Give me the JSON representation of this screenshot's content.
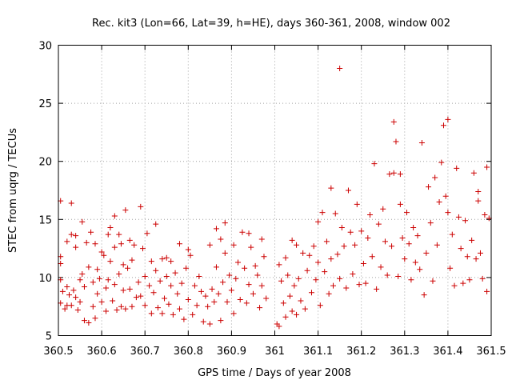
{
  "chart_data": {
    "type": "scatter",
    "title": "Rec. kit3 (Lon=66, Lat=39, h=HE), days 360-361, 2008, window 002",
    "xlabel": "GPS time / Days of year 2008",
    "ylabel": "STEC from uqrg / TECUs",
    "xlim": [
      360.5,
      361.5
    ],
    "ylim": [
      5,
      30
    ],
    "x_ticks": [
      360.5,
      360.6,
      360.7,
      360.8,
      360.9,
      361,
      361.1,
      361.2,
      361.3,
      361.4,
      361.5
    ],
    "x_tick_labels": [
      "360.5",
      "360.6",
      "360.7",
      "360.8",
      "360.9",
      "361",
      "361.1",
      "361.2",
      "361.3",
      "361.4",
      "361.5"
    ],
    "y_ticks": [
      5,
      10,
      15,
      20,
      25,
      30
    ],
    "y_tick_labels": [
      "5",
      "10",
      "15",
      "20",
      "25",
      "30"
    ],
    "grid": true,
    "marker": "+",
    "marker_color": "#cc0000",
    "series": [
      {
        "points": [
          [
            360.505,
            16.6
          ],
          [
            360.505,
            11.8
          ],
          [
            360.505,
            11.2
          ],
          [
            360.505,
            9.8
          ],
          [
            360.505,
            7.8
          ],
          [
            360.51,
            8.8
          ],
          [
            360.515,
            7.3
          ],
          [
            360.52,
            13.1
          ],
          [
            360.52,
            9.2
          ],
          [
            360.52,
            7.6
          ],
          [
            360.525,
            8.5
          ],
          [
            360.53,
            16.4
          ],
          [
            360.53,
            13.7
          ],
          [
            360.53,
            7.6
          ],
          [
            360.535,
            8.9
          ],
          [
            360.54,
            13.6
          ],
          [
            360.54,
            12.6
          ],
          [
            360.54,
            8.3
          ],
          [
            360.545,
            7.2
          ],
          [
            360.55,
            9.8
          ],
          [
            360.55,
            7.9
          ],
          [
            360.555,
            14.8
          ],
          [
            360.555,
            10.3
          ],
          [
            360.56,
            9.2
          ],
          [
            360.56,
            6.3
          ],
          [
            360.565,
            13.0
          ],
          [
            360.57,
            10.9
          ],
          [
            360.57,
            6.1
          ],
          [
            360.575,
            13.9
          ],
          [
            360.58,
            9.6
          ],
          [
            360.58,
            7.5
          ],
          [
            360.585,
            12.9
          ],
          [
            360.585,
            6.5
          ],
          [
            360.59,
            10.7
          ],
          [
            360.59,
            8.6
          ],
          [
            360.595,
            9.9
          ],
          [
            360.6,
            12.2
          ],
          [
            360.6,
            7.9
          ],
          [
            360.605,
            11.9
          ],
          [
            360.61,
            9.1
          ],
          [
            360.61,
            7.1
          ],
          [
            360.615,
            13.7
          ],
          [
            360.615,
            9.8
          ],
          [
            360.62,
            14.3
          ],
          [
            360.62,
            11.4
          ],
          [
            360.625,
            8.0
          ],
          [
            360.63,
            15.3
          ],
          [
            360.63,
            12.6
          ],
          [
            360.63,
            9.4
          ],
          [
            360.635,
            7.2
          ],
          [
            360.64,
            13.7
          ],
          [
            360.64,
            10.3
          ],
          [
            360.645,
            12.9
          ],
          [
            360.645,
            7.5
          ],
          [
            360.65,
            11.1
          ],
          [
            360.65,
            8.9
          ],
          [
            360.655,
            15.8
          ],
          [
            360.655,
            7.3
          ],
          [
            360.66,
            10.8
          ],
          [
            360.665,
            13.2
          ],
          [
            360.665,
            9.0
          ],
          [
            360.67,
            11.5
          ],
          [
            360.67,
            7.5
          ],
          [
            360.675,
            12.8
          ],
          [
            360.68,
            8.3
          ],
          [
            360.685,
            9.6
          ],
          [
            360.69,
            16.1
          ],
          [
            360.69,
            8.4
          ],
          [
            360.695,
            12.5
          ],
          [
            360.7,
            10.1
          ],
          [
            360.7,
            7.6
          ],
          [
            360.705,
            13.8
          ],
          [
            360.71,
            9.3
          ],
          [
            360.715,
            11.4
          ],
          [
            360.715,
            6.9
          ],
          [
            360.72,
            8.7
          ],
          [
            360.725,
            14.6
          ],
          [
            360.725,
            10.6
          ],
          [
            360.73,
            7.4
          ],
          [
            360.735,
            9.7
          ],
          [
            360.74,
            11.6
          ],
          [
            360.74,
            6.9
          ],
          [
            360.745,
            8.2
          ],
          [
            360.75,
            11.7
          ],
          [
            360.75,
            10.1
          ],
          [
            360.755,
            7.7
          ],
          [
            360.76,
            11.4
          ],
          [
            360.76,
            9.3
          ],
          [
            360.765,
            6.8
          ],
          [
            360.77,
            10.4
          ],
          [
            360.775,
            8.6
          ],
          [
            360.78,
            12.9
          ],
          [
            360.78,
            7.3
          ],
          [
            360.785,
            9.5
          ],
          [
            360.79,
            6.4
          ],
          [
            360.795,
            10.8
          ],
          [
            360.8,
            12.4
          ],
          [
            360.8,
            8.1
          ],
          [
            360.805,
            11.9
          ],
          [
            360.81,
            6.8
          ],
          [
            360.815,
            9.3
          ],
          [
            360.82,
            7.6
          ],
          [
            360.825,
            10.1
          ],
          [
            360.83,
            8.8
          ],
          [
            360.835,
            6.2
          ],
          [
            360.84,
            8.4
          ],
          [
            360.845,
            7.5
          ],
          [
            360.85,
            12.8
          ],
          [
            360.85,
            6.0
          ],
          [
            360.855,
            9.0
          ],
          [
            360.86,
            7.9
          ],
          [
            360.865,
            14.2
          ],
          [
            360.865,
            10.9
          ],
          [
            360.87,
            8.6
          ],
          [
            360.875,
            13.3
          ],
          [
            360.875,
            6.3
          ],
          [
            360.88,
            9.6
          ],
          [
            360.885,
            14.7
          ],
          [
            360.885,
            12.1
          ],
          [
            360.89,
            7.9
          ],
          [
            360.895,
            10.2
          ],
          [
            360.9,
            8.9
          ],
          [
            360.905,
            12.8
          ],
          [
            360.905,
            6.9
          ],
          [
            360.91,
            9.9
          ],
          [
            360.915,
            11.3
          ],
          [
            360.92,
            8.1
          ],
          [
            360.925,
            13.9
          ],
          [
            360.93,
            10.8
          ],
          [
            360.935,
            7.8
          ],
          [
            360.94,
            13.8
          ],
          [
            360.94,
            9.4
          ],
          [
            360.945,
            12.6
          ],
          [
            360.95,
            8.6
          ],
          [
            360.955,
            11.0
          ],
          [
            360.96,
            10.2
          ],
          [
            360.965,
            7.4
          ],
          [
            360.97,
            13.3
          ],
          [
            360.97,
            9.3
          ],
          [
            360.975,
            11.8
          ],
          [
            360.98,
            8.2
          ],
          [
            361.005,
            6.0
          ],
          [
            361.01,
            11.1
          ],
          [
            361.01,
            5.8
          ],
          [
            361.015,
            9.7
          ],
          [
            361.02,
            7.8
          ],
          [
            361.025,
            11.7
          ],
          [
            361.025,
            6.6
          ],
          [
            361.03,
            10.2
          ],
          [
            361.035,
            8.4
          ],
          [
            361.04,
            13.2
          ],
          [
            361.04,
            7.1
          ],
          [
            361.045,
            9.3
          ],
          [
            361.05,
            12.8
          ],
          [
            361.05,
            6.8
          ],
          [
            361.055,
            9.9
          ],
          [
            361.06,
            8.0
          ],
          [
            361.065,
            12.1
          ],
          [
            361.07,
            7.3
          ],
          [
            361.075,
            10.6
          ],
          [
            361.08,
            11.9
          ],
          [
            361.085,
            8.7
          ],
          [
            361.09,
            12.7
          ],
          [
            361.095,
            9.8
          ],
          [
            361.1,
            14.8
          ],
          [
            361.1,
            11.3
          ],
          [
            361.105,
            7.6
          ],
          [
            361.11,
            15.6
          ],
          [
            361.115,
            10.5
          ],
          [
            361.12,
            13.1
          ],
          [
            361.125,
            8.6
          ],
          [
            361.13,
            17.7
          ],
          [
            361.13,
            11.6
          ],
          [
            361.135,
            9.3
          ],
          [
            361.14,
            15.5
          ],
          [
            361.145,
            12.0
          ],
          [
            361.15,
            28.0
          ],
          [
            361.15,
            9.9
          ],
          [
            361.155,
            14.3
          ],
          [
            361.16,
            12.7
          ],
          [
            361.165,
            9.1
          ],
          [
            361.17,
            17.5
          ],
          [
            361.175,
            13.9
          ],
          [
            361.18,
            10.3
          ],
          [
            361.185,
            12.8
          ],
          [
            361.19,
            16.3
          ],
          [
            361.195,
            9.4
          ],
          [
            361.2,
            14.0
          ],
          [
            361.205,
            11.2
          ],
          [
            361.21,
            9.5
          ],
          [
            361.215,
            13.4
          ],
          [
            361.22,
            15.4
          ],
          [
            361.225,
            11.8
          ],
          [
            361.23,
            19.8
          ],
          [
            361.235,
            9.0
          ],
          [
            361.24,
            14.6
          ],
          [
            361.245,
            10.9
          ],
          [
            361.25,
            15.9
          ],
          [
            361.255,
            13.1
          ],
          [
            361.26,
            10.2
          ],
          [
            361.265,
            18.9
          ],
          [
            361.27,
            12.7
          ],
          [
            361.275,
            23.4
          ],
          [
            361.275,
            19.0
          ],
          [
            361.28,
            21.7
          ],
          [
            361.285,
            10.1
          ],
          [
            361.29,
            18.9
          ],
          [
            361.29,
            16.3
          ],
          [
            361.295,
            13.4
          ],
          [
            361.3,
            11.6
          ],
          [
            361.305,
            15.6
          ],
          [
            361.31,
            12.9
          ],
          [
            361.315,
            9.8
          ],
          [
            361.32,
            14.3
          ],
          [
            361.325,
            11.3
          ],
          [
            361.33,
            13.6
          ],
          [
            361.335,
            10.7
          ],
          [
            361.34,
            21.6
          ],
          [
            361.345,
            8.5
          ],
          [
            361.35,
            12.1
          ],
          [
            361.355,
            17.8
          ],
          [
            361.36,
            14.7
          ],
          [
            361.365,
            9.7
          ],
          [
            361.37,
            18.6
          ],
          [
            361.375,
            12.8
          ],
          [
            361.38,
            16.5
          ],
          [
            361.385,
            19.9
          ],
          [
            361.39,
            23.1
          ],
          [
            361.395,
            17.0
          ],
          [
            361.4,
            23.6
          ],
          [
            361.4,
            15.6
          ],
          [
            361.405,
            10.8
          ],
          [
            361.41,
            13.7
          ],
          [
            361.415,
            9.3
          ],
          [
            361.42,
            19.4
          ],
          [
            361.425,
            15.2
          ],
          [
            361.43,
            12.5
          ],
          [
            361.435,
            9.5
          ],
          [
            361.44,
            14.9
          ],
          [
            361.445,
            11.8
          ],
          [
            361.45,
            9.8
          ],
          [
            361.455,
            13.2
          ],
          [
            361.46,
            19.0
          ],
          [
            361.465,
            11.6
          ],
          [
            361.47,
            17.4
          ],
          [
            361.47,
            16.6
          ],
          [
            361.475,
            12.1
          ],
          [
            361.48,
            9.9
          ],
          [
            361.485,
            15.4
          ],
          [
            361.49,
            19.5
          ],
          [
            361.49,
            8.8
          ],
          [
            361.495,
            15.1
          ]
        ]
      }
    ]
  }
}
